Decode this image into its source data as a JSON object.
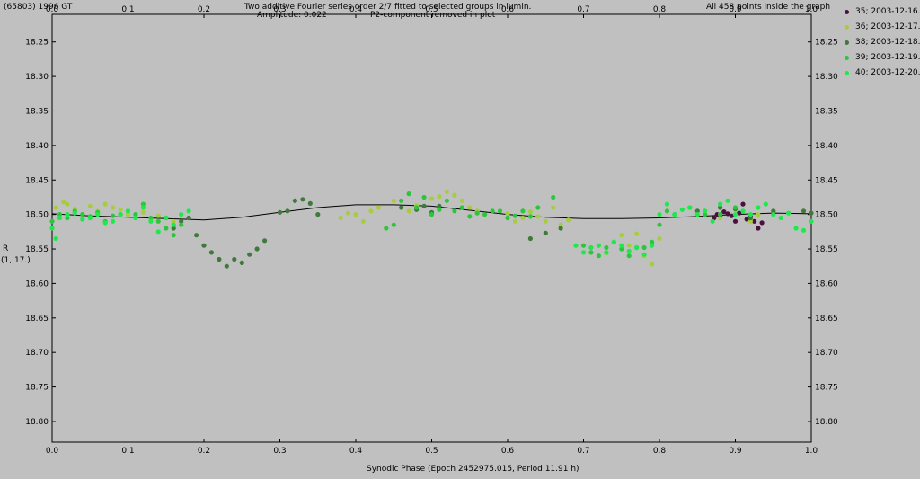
{
  "header": {
    "object": "(65803) 1996 GT",
    "title_line1": "Two additive Fourier series order 2/7 fitted to selected groups in lumin.",
    "title_line2": "Amplitude: 0.022",
    "title_line3": "P2-component removed in plot",
    "points_note": "All 458 points inside the graph"
  },
  "axes": {
    "ylabel_line1": "R",
    "ylabel_line2": "(1, 17.)",
    "xlabel": "Synodic Phase (Epoch 2452975.015, Period 11.91 h)"
  },
  "legend": [
    {
      "label": "35; 2003-12-16.9",
      "color": "#4a1040"
    },
    {
      "label": "36; 2003-12-17.3",
      "color": "#a8cc40"
    },
    {
      "label": "38; 2003-12-18.9",
      "color": "#3f7a3a"
    },
    {
      "label": "39; 2003-12-19.3",
      "color": "#2cc63c"
    },
    {
      "label": "40; 2003-12-20.3",
      "color": "#1ee84c"
    }
  ],
  "chart_data": {
    "type": "scatter",
    "title": "Two additive Fourier series order 2/7 fitted to selected groups in lumin.",
    "xlabel": "Synodic Phase (Epoch 2452975.015, Period 11.91 h)",
    "ylabel": "R",
    "xlim": [
      0.0,
      1.0
    ],
    "ylim": [
      18.83,
      18.21
    ],
    "y_inverted": true,
    "grid": false,
    "legend_position": "right",
    "x_ticks": [
      "0.0",
      "0.1",
      "0.2",
      "0.3",
      "0.4",
      "0.5",
      "0.6",
      "0.7",
      "0.8",
      "0.9",
      "1.0"
    ],
    "y_ticks": [
      "18.25",
      "18.30",
      "18.35",
      "18.40",
      "18.45",
      "18.50",
      "18.55",
      "18.60",
      "18.65",
      "18.70",
      "18.75",
      "18.80"
    ],
    "fit_curve": {
      "x": [
        0.0,
        0.05,
        0.1,
        0.15,
        0.2,
        0.25,
        0.3,
        0.35,
        0.4,
        0.45,
        0.5,
        0.55,
        0.6,
        0.65,
        0.7,
        0.75,
        0.8,
        0.85,
        0.9,
        0.95,
        1.0
      ],
      "y": [
        18.499,
        18.502,
        18.504,
        18.506,
        18.508,
        18.504,
        18.497,
        18.49,
        18.486,
        18.486,
        18.488,
        18.494,
        18.5,
        18.504,
        18.506,
        18.506,
        18.505,
        18.503,
        18.5,
        18.498,
        18.499
      ]
    },
    "series": [
      {
        "name": "35; 2003-12-16.9",
        "color": "#4a1040",
        "x": [
          0.872,
          0.876,
          0.88,
          0.885,
          0.89,
          0.895,
          0.9,
          0.905,
          0.91,
          0.915,
          0.92,
          0.925,
          0.93,
          0.935
        ],
        "y": [
          18.505,
          18.5,
          18.503,
          18.496,
          18.499,
          18.502,
          18.51,
          18.498,
          18.485,
          18.507,
          18.503,
          18.51,
          18.52,
          18.512
        ]
      },
      {
        "name": "36; 2003-12-17.3",
        "color": "#a8cc40",
        "x": [
          0.005,
          0.015,
          0.02,
          0.03,
          0.05,
          0.06,
          0.07,
          0.08,
          0.09,
          0.1,
          0.12,
          0.14,
          0.16,
          0.38,
          0.39,
          0.4,
          0.41,
          0.42,
          0.43,
          0.45,
          0.47,
          0.48,
          0.5,
          0.51,
          0.52,
          0.53,
          0.54,
          0.55,
          0.56,
          0.6,
          0.61,
          0.62,
          0.63,
          0.64,
          0.65,
          0.66,
          0.67,
          0.68,
          0.73,
          0.75,
          0.76,
          0.77,
          0.78,
          0.79,
          0.8,
          0.86,
          0.88,
          0.9,
          0.92,
          0.93
        ],
        "y": [
          18.49,
          18.482,
          18.485,
          18.492,
          18.488,
          18.495,
          18.485,
          18.49,
          18.493,
          18.5,
          18.497,
          18.502,
          18.51,
          18.505,
          18.498,
          18.5,
          18.51,
          18.495,
          18.49,
          18.48,
          18.495,
          18.487,
          18.477,
          18.474,
          18.467,
          18.472,
          18.48,
          18.49,
          18.495,
          18.499,
          18.51,
          18.505,
          18.496,
          18.503,
          18.51,
          18.49,
          18.515,
          18.508,
          18.556,
          18.53,
          18.545,
          18.528,
          18.56,
          18.572,
          18.535,
          18.495,
          18.505,
          18.493,
          18.51,
          18.5
        ]
      },
      {
        "name": "38; 2003-12-18.9",
        "color": "#3f7a3a",
        "x": [
          0.15,
          0.16,
          0.17,
          0.18,
          0.19,
          0.2,
          0.21,
          0.22,
          0.23,
          0.24,
          0.25,
          0.26,
          0.27,
          0.28,
          0.3,
          0.31,
          0.32,
          0.33,
          0.34,
          0.35,
          0.46,
          0.48,
          0.49,
          0.5,
          0.51,
          0.63,
          0.65,
          0.67,
          0.85,
          0.88,
          0.9,
          0.92,
          0.95,
          0.99,
          1.0
        ],
        "y": [
          18.505,
          18.52,
          18.51,
          18.505,
          18.53,
          18.545,
          18.555,
          18.565,
          18.575,
          18.565,
          18.57,
          18.558,
          18.55,
          18.538,
          18.497,
          18.495,
          18.48,
          18.478,
          18.484,
          18.5,
          18.49,
          18.493,
          18.488,
          18.497,
          18.488,
          18.535,
          18.527,
          18.52,
          18.495,
          18.49,
          18.492,
          18.505,
          18.495,
          18.495,
          18.498
        ]
      },
      {
        "name": "39; 2003-12-19.3",
        "color": "#2cc63c",
        "x": [
          0.0,
          0.01,
          0.02,
          0.03,
          0.04,
          0.05,
          0.06,
          0.07,
          0.08,
          0.09,
          0.1,
          0.11,
          0.12,
          0.13,
          0.14,
          0.15,
          0.16,
          0.17,
          0.44,
          0.45,
          0.46,
          0.47,
          0.48,
          0.49,
          0.5,
          0.51,
          0.52,
          0.53,
          0.54,
          0.55,
          0.56,
          0.57,
          0.58,
          0.59,
          0.6,
          0.61,
          0.62,
          0.63,
          0.64,
          0.66,
          0.7,
          0.71,
          0.72,
          0.73,
          0.74,
          0.75,
          0.76,
          0.77,
          0.78,
          0.79,
          0.8,
          0.81,
          0.82,
          0.84,
          0.86,
          0.88,
          0.9
        ],
        "y": [
          18.51,
          18.5,
          18.505,
          18.495,
          18.5,
          18.503,
          18.497,
          18.51,
          18.502,
          18.5,
          18.495,
          18.5,
          18.485,
          18.505,
          18.51,
          18.52,
          18.53,
          18.515,
          18.52,
          18.515,
          18.48,
          18.47,
          18.49,
          18.475,
          18.5,
          18.493,
          18.48,
          18.495,
          18.49,
          18.503,
          18.498,
          18.5,
          18.495,
          18.495,
          18.505,
          18.502,
          18.495,
          18.503,
          18.49,
          18.475,
          18.545,
          18.555,
          18.56,
          18.548,
          18.54,
          18.55,
          18.56,
          18.548,
          18.548,
          18.54,
          18.515,
          18.495,
          18.5,
          18.49,
          18.5,
          18.5,
          18.49
        ]
      },
      {
        "name": "40; 2003-12-20.3",
        "color": "#1ee84c",
        "x": [
          0.0,
          0.005,
          0.01,
          0.02,
          0.03,
          0.04,
          0.05,
          0.06,
          0.07,
          0.08,
          0.09,
          0.1,
          0.11,
          0.12,
          0.13,
          0.14,
          0.15,
          0.16,
          0.17,
          0.18,
          0.69,
          0.7,
          0.71,
          0.72,
          0.73,
          0.74,
          0.75,
          0.76,
          0.77,
          0.78,
          0.79,
          0.8,
          0.81,
          0.82,
          0.83,
          0.84,
          0.85,
          0.86,
          0.87,
          0.88,
          0.89,
          0.9,
          0.91,
          0.92,
          0.93,
          0.94,
          0.95,
          0.96,
          0.97,
          0.98,
          0.99,
          1.0
        ],
        "y": [
          18.52,
          18.535,
          18.505,
          18.5,
          18.498,
          18.507,
          18.505,
          18.5,
          18.512,
          18.51,
          18.5,
          18.495,
          18.505,
          18.49,
          18.51,
          18.525,
          18.505,
          18.515,
          18.5,
          18.495,
          18.545,
          18.555,
          18.548,
          18.545,
          18.555,
          18.54,
          18.545,
          18.553,
          18.548,
          18.558,
          18.545,
          18.5,
          18.485,
          18.5,
          18.493,
          18.49,
          18.5,
          18.495,
          18.51,
          18.485,
          18.48,
          18.5,
          18.495,
          18.5,
          18.49,
          18.485,
          18.5,
          18.505,
          18.498,
          18.52,
          18.523,
          18.51
        ]
      }
    ]
  }
}
